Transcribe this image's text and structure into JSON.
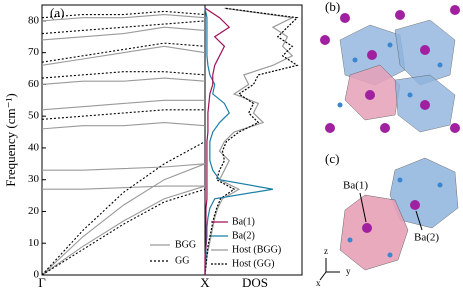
{
  "chart_data": [
    {
      "type": "line",
      "panel_label": "(a)",
      "ylabel": "Frequency (cm⁻¹)",
      "x": [
        0,
        0.25,
        0.5,
        0.75,
        1
      ],
      "xlim": [
        0,
        1
      ],
      "xticks": [
        {
          "value": 0,
          "label": "Γ"
        },
        {
          "value": 1,
          "label": "X"
        }
      ],
      "ylim": [
        0,
        85
      ],
      "yticks": [
        0,
        10,
        20,
        30,
        40,
        50,
        60,
        70,
        80
      ],
      "legend": "lower right",
      "series": [
        {
          "name": "BGG",
          "color": "#9a9a9a",
          "dash": false,
          "bands": [
            [
              0,
              9,
              17,
              24,
              28
            ],
            [
              0,
              12,
              22,
              30,
              35
            ],
            [
              27,
              27,
              27.5,
              28,
              28
            ],
            [
              33,
              33,
              33.5,
              34,
              35
            ],
            [
              46,
              47,
              47,
              48,
              47
            ],
            [
              52,
              53,
              54,
              55,
              55
            ],
            [
              60,
              61,
              61,
              62,
              61
            ],
            [
              66,
              68,
              70,
              72,
              70
            ],
            [
              74,
              75,
              76,
              78,
              77
            ],
            [
              80,
              81,
              81,
              82,
              81
            ]
          ]
        },
        {
          "name": "GG",
          "color": "#000000",
          "dash": true,
          "bands": [
            [
              0,
              8,
              16,
              23,
              27
            ],
            [
              0,
              14,
              26,
              35,
              42
            ],
            [
              49,
              50,
              51,
              52,
              52
            ],
            [
              62,
              63,
              64,
              64,
              63
            ],
            [
              67,
              69,
              71,
              73,
              72
            ],
            [
              76,
              77,
              78,
              79,
              80
            ],
            [
              81,
              82,
              82,
              83,
              82
            ]
          ]
        }
      ]
    },
    {
      "type": "dos",
      "xlabel": "DOS",
      "legend": "lower right",
      "ylim": [
        0,
        85
      ],
      "xlim": [
        0,
        1
      ],
      "x": [
        0,
        3,
        6,
        9,
        12,
        15,
        18,
        21,
        24,
        27,
        30,
        33,
        36,
        39,
        42,
        45,
        48,
        51,
        54,
        57,
        60,
        63,
        66,
        69,
        72,
        75,
        78,
        81,
        84
      ],
      "series": [
        {
          "name": "Ba(1)",
          "color": "#a0105a",
          "dash": false,
          "values": [
            0,
            0,
            0,
            0.01,
            0.01,
            0.01,
            0.01,
            0.01,
            0.02,
            0.02,
            0.02,
            0.02,
            0.02,
            0.02,
            0.02,
            0.03,
            0.03,
            0.03,
            0.04,
            0.05,
            0.08,
            0.08,
            0.1,
            0.15,
            0.2,
            0.1,
            0.25,
            0.15,
            0
          ]
        },
        {
          "name": "Ba(2)",
          "color": "#1b7fa6",
          "dash": false,
          "values": [
            0,
            0,
            0.01,
            0.01,
            0.02,
            0.02,
            0.03,
            0.05,
            0.1,
            0.7,
            0.15,
            0.08,
            0.05,
            0.05,
            0.05,
            0.08,
            0.15,
            0.25,
            0.2,
            0.08,
            0.1,
            0.05,
            0.03,
            0.02,
            0.02,
            0.02,
            0.02,
            0.02,
            0
          ]
        },
        {
          "name": "Host (BGG)",
          "color": "#9a9a9a",
          "dash": false,
          "values": [
            0,
            0.01,
            0.02,
            0.04,
            0.06,
            0.08,
            0.1,
            0.13,
            0.18,
            0.35,
            0.15,
            0.2,
            0.25,
            0.15,
            0.2,
            0.3,
            0.6,
            0.5,
            0.55,
            0.3,
            0.45,
            0.4,
            0.7,
            0.9,
            0.8,
            0.85,
            0.7,
            0.9,
            0.2
          ]
        },
        {
          "name": "Host (GG)",
          "color": "#000000",
          "dash": true,
          "values": [
            0,
            0.01,
            0.02,
            0.03,
            0.05,
            0.07,
            0.09,
            0.12,
            0.16,
            0.3,
            0.12,
            0.15,
            0.2,
            0.18,
            0.22,
            0.35,
            0.55,
            0.45,
            0.5,
            0.35,
            0.5,
            0.55,
            0.95,
            0.8,
            0.9,
            0.75,
            0.85,
            0.95,
            0.2
          ]
        }
      ]
    }
  ],
  "structures": {
    "b": {
      "label": "(b)"
    },
    "c": {
      "label": "(c)",
      "annotations": [
        "Ba(1)",
        "Ba(2)"
      ],
      "axes": [
        "z",
        "y",
        "x"
      ]
    }
  }
}
